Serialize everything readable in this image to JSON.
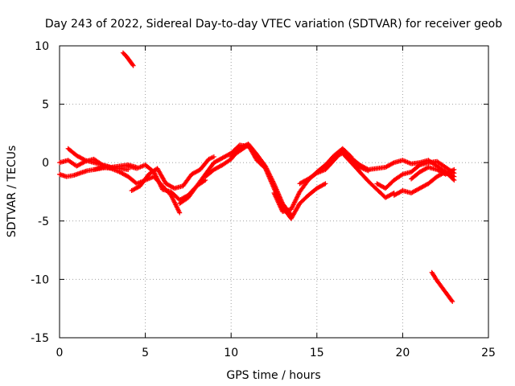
{
  "chart_data": {
    "type": "scatter",
    "title": "Day 243 of 2022, Sidereal Day-to-day VTEC variation (SDTVAR) for receiver geob",
    "xlabel": "GPS time / hours",
    "ylabel": "SDTVAR / TECUs",
    "xlim": [
      0,
      25
    ],
    "ylim": [
      -15,
      10
    ],
    "xticks": [
      0,
      5,
      10,
      15,
      20,
      25
    ],
    "yticks": [
      -15,
      -10,
      -5,
      0,
      5,
      10
    ],
    "xtick_labels": [
      "0",
      "5",
      "10",
      "15",
      "20",
      "25"
    ],
    "ytick_labels": [
      "-15",
      "-10",
      "-5",
      "0",
      "5",
      "10"
    ],
    "grid": true,
    "marker": "+",
    "color": "#ff0000",
    "series": [
      {
        "name": "track-1",
        "x": [
          0,
          0.5,
          1,
          1.5,
          2,
          2.5,
          3,
          3.5,
          4
        ],
        "y": [
          0.0,
          0.2,
          -0.3,
          0.1,
          0.3,
          -0.2,
          -0.4,
          -0.5,
          -0.6
        ]
      },
      {
        "name": "track-2",
        "x": [
          0,
          0.4,
          0.8,
          1.2,
          1.6,
          2,
          2.4,
          2.8,
          3.2
        ],
        "y": [
          -1.0,
          -1.2,
          -1.1,
          -0.9,
          -0.7,
          -0.6,
          -0.5,
          -0.4,
          -0.5
        ]
      },
      {
        "name": "track-3",
        "x": [
          0.5,
          1,
          1.5,
          2,
          2.5,
          3,
          3.5,
          4,
          4.5
        ],
        "y": [
          1.2,
          0.6,
          0.2,
          0.0,
          -0.2,
          -0.4,
          -0.3,
          -0.2,
          -0.4
        ]
      },
      {
        "name": "track-4",
        "x": [
          2,
          2.5,
          3,
          3.5,
          4,
          4.5,
          5,
          5.5,
          6,
          6.5,
          7
        ],
        "y": [
          -0.6,
          -0.4,
          -0.5,
          -0.8,
          -1.2,
          -1.8,
          -1.5,
          -1.2,
          -2.0,
          -2.8,
          -4.3
        ]
      },
      {
        "name": "track-5",
        "x": [
          3.7,
          3.9,
          4.1,
          4.3
        ],
        "y": [
          9.4,
          9.1,
          8.7,
          8.3
        ]
      },
      {
        "name": "track-6",
        "x": [
          4,
          4.5,
          5,
          5.5,
          6,
          6.5,
          7,
          7.5,
          8,
          8.5
        ],
        "y": [
          -0.3,
          -0.5,
          -0.2,
          -0.8,
          -2.3,
          -2.5,
          -3.2,
          -2.8,
          -2.0,
          -1.5
        ]
      },
      {
        "name": "track-7",
        "x": [
          4.2,
          4.7,
          5.2,
          5.7,
          6.2,
          6.7,
          7.2,
          7.7,
          8.2,
          8.7,
          9
        ],
        "y": [
          -2.4,
          -2.0,
          -1.0,
          -0.5,
          -1.8,
          -2.2,
          -2.0,
          -1.0,
          -0.6,
          0.3,
          0.5
        ]
      },
      {
        "name": "track-8",
        "x": [
          7,
          7.5,
          8,
          8.5,
          9,
          9.5,
          10,
          10.5,
          11,
          11.5
        ],
        "y": [
          -3.5,
          -3.0,
          -2.0,
          -1.0,
          0.0,
          0.4,
          0.8,
          1.5,
          1.4,
          0.6
        ]
      },
      {
        "name": "track-9",
        "x": [
          8.5,
          9,
          9.5,
          10,
          10.5,
          11,
          11.5,
          12,
          12.5,
          13,
          13.5
        ],
        "y": [
          -1.2,
          -0.6,
          -0.2,
          0.3,
          1.2,
          1.6,
          0.7,
          -0.3,
          -1.8,
          -3.5,
          -4.5
        ]
      },
      {
        "name": "track-10",
        "x": [
          10,
          10.5,
          11,
          11.5,
          12,
          12.5,
          13,
          13.5,
          14,
          14.5,
          15,
          15.5
        ],
        "y": [
          0.5,
          1.0,
          1.5,
          0.2,
          -0.5,
          -2.2,
          -3.8,
          -4.8,
          -3.5,
          -2.8,
          -2.2,
          -1.8
        ]
      },
      {
        "name": "track-11",
        "x": [
          12.5,
          13,
          13.5,
          14,
          14.5,
          15,
          15.5,
          16,
          16.5,
          17
        ],
        "y": [
          -2.6,
          -4.2,
          -4.0,
          -2.5,
          -1.5,
          -0.8,
          -0.2,
          0.6,
          1.2,
          0.5
        ]
      },
      {
        "name": "track-12",
        "x": [
          14,
          14.5,
          15,
          15.5,
          16,
          16.5,
          17,
          17.5,
          18
        ],
        "y": [
          -1.8,
          -1.4,
          -0.9,
          -0.6,
          0.2,
          1.0,
          0.3,
          -0.4,
          -0.7
        ]
      },
      {
        "name": "track-13",
        "x": [
          16,
          16.5,
          17,
          17.5,
          18,
          18.5,
          19,
          19.5
        ],
        "y": [
          0.5,
          0.8,
          0.0,
          -0.8,
          -1.6,
          -2.3,
          -3.0,
          -2.6
        ]
      },
      {
        "name": "track-14",
        "x": [
          17,
          17.5,
          18,
          18.5,
          19,
          19.5,
          20,
          20.5,
          21,
          21.5,
          22,
          22.5,
          23
        ],
        "y": [
          0.4,
          -0.2,
          -0.6,
          -0.5,
          -0.4,
          0.0,
          0.2,
          -0.1,
          0.0,
          0.2,
          -0.3,
          -0.8,
          -1.2
        ]
      },
      {
        "name": "track-15",
        "x": [
          18.5,
          19,
          19.5,
          20,
          20.5,
          21,
          21.5,
          22,
          22.5,
          23
        ],
        "y": [
          -1.8,
          -2.2,
          -1.5,
          -1.0,
          -0.8,
          -0.2,
          0.0,
          0.1,
          -0.4,
          -0.9
        ]
      },
      {
        "name": "track-16",
        "x": [
          19.5,
          20,
          20.5,
          21,
          21.5,
          22,
          22.5,
          23
        ],
        "y": [
          -2.8,
          -2.4,
          -2.6,
          -2.2,
          -1.8,
          -1.2,
          -0.8,
          -1.5
        ]
      },
      {
        "name": "track-17",
        "x": [
          20.5,
          21,
          21.5,
          22,
          22.5,
          23
        ],
        "y": [
          -1.4,
          -0.8,
          -0.4,
          -0.6,
          -1.0,
          -0.6
        ]
      },
      {
        "name": "track-18",
        "x": [
          21.7,
          22,
          22.3,
          22.6,
          22.9
        ],
        "y": [
          -9.4,
          -10.1,
          -10.7,
          -11.3,
          -11.9
        ]
      }
    ]
  }
}
